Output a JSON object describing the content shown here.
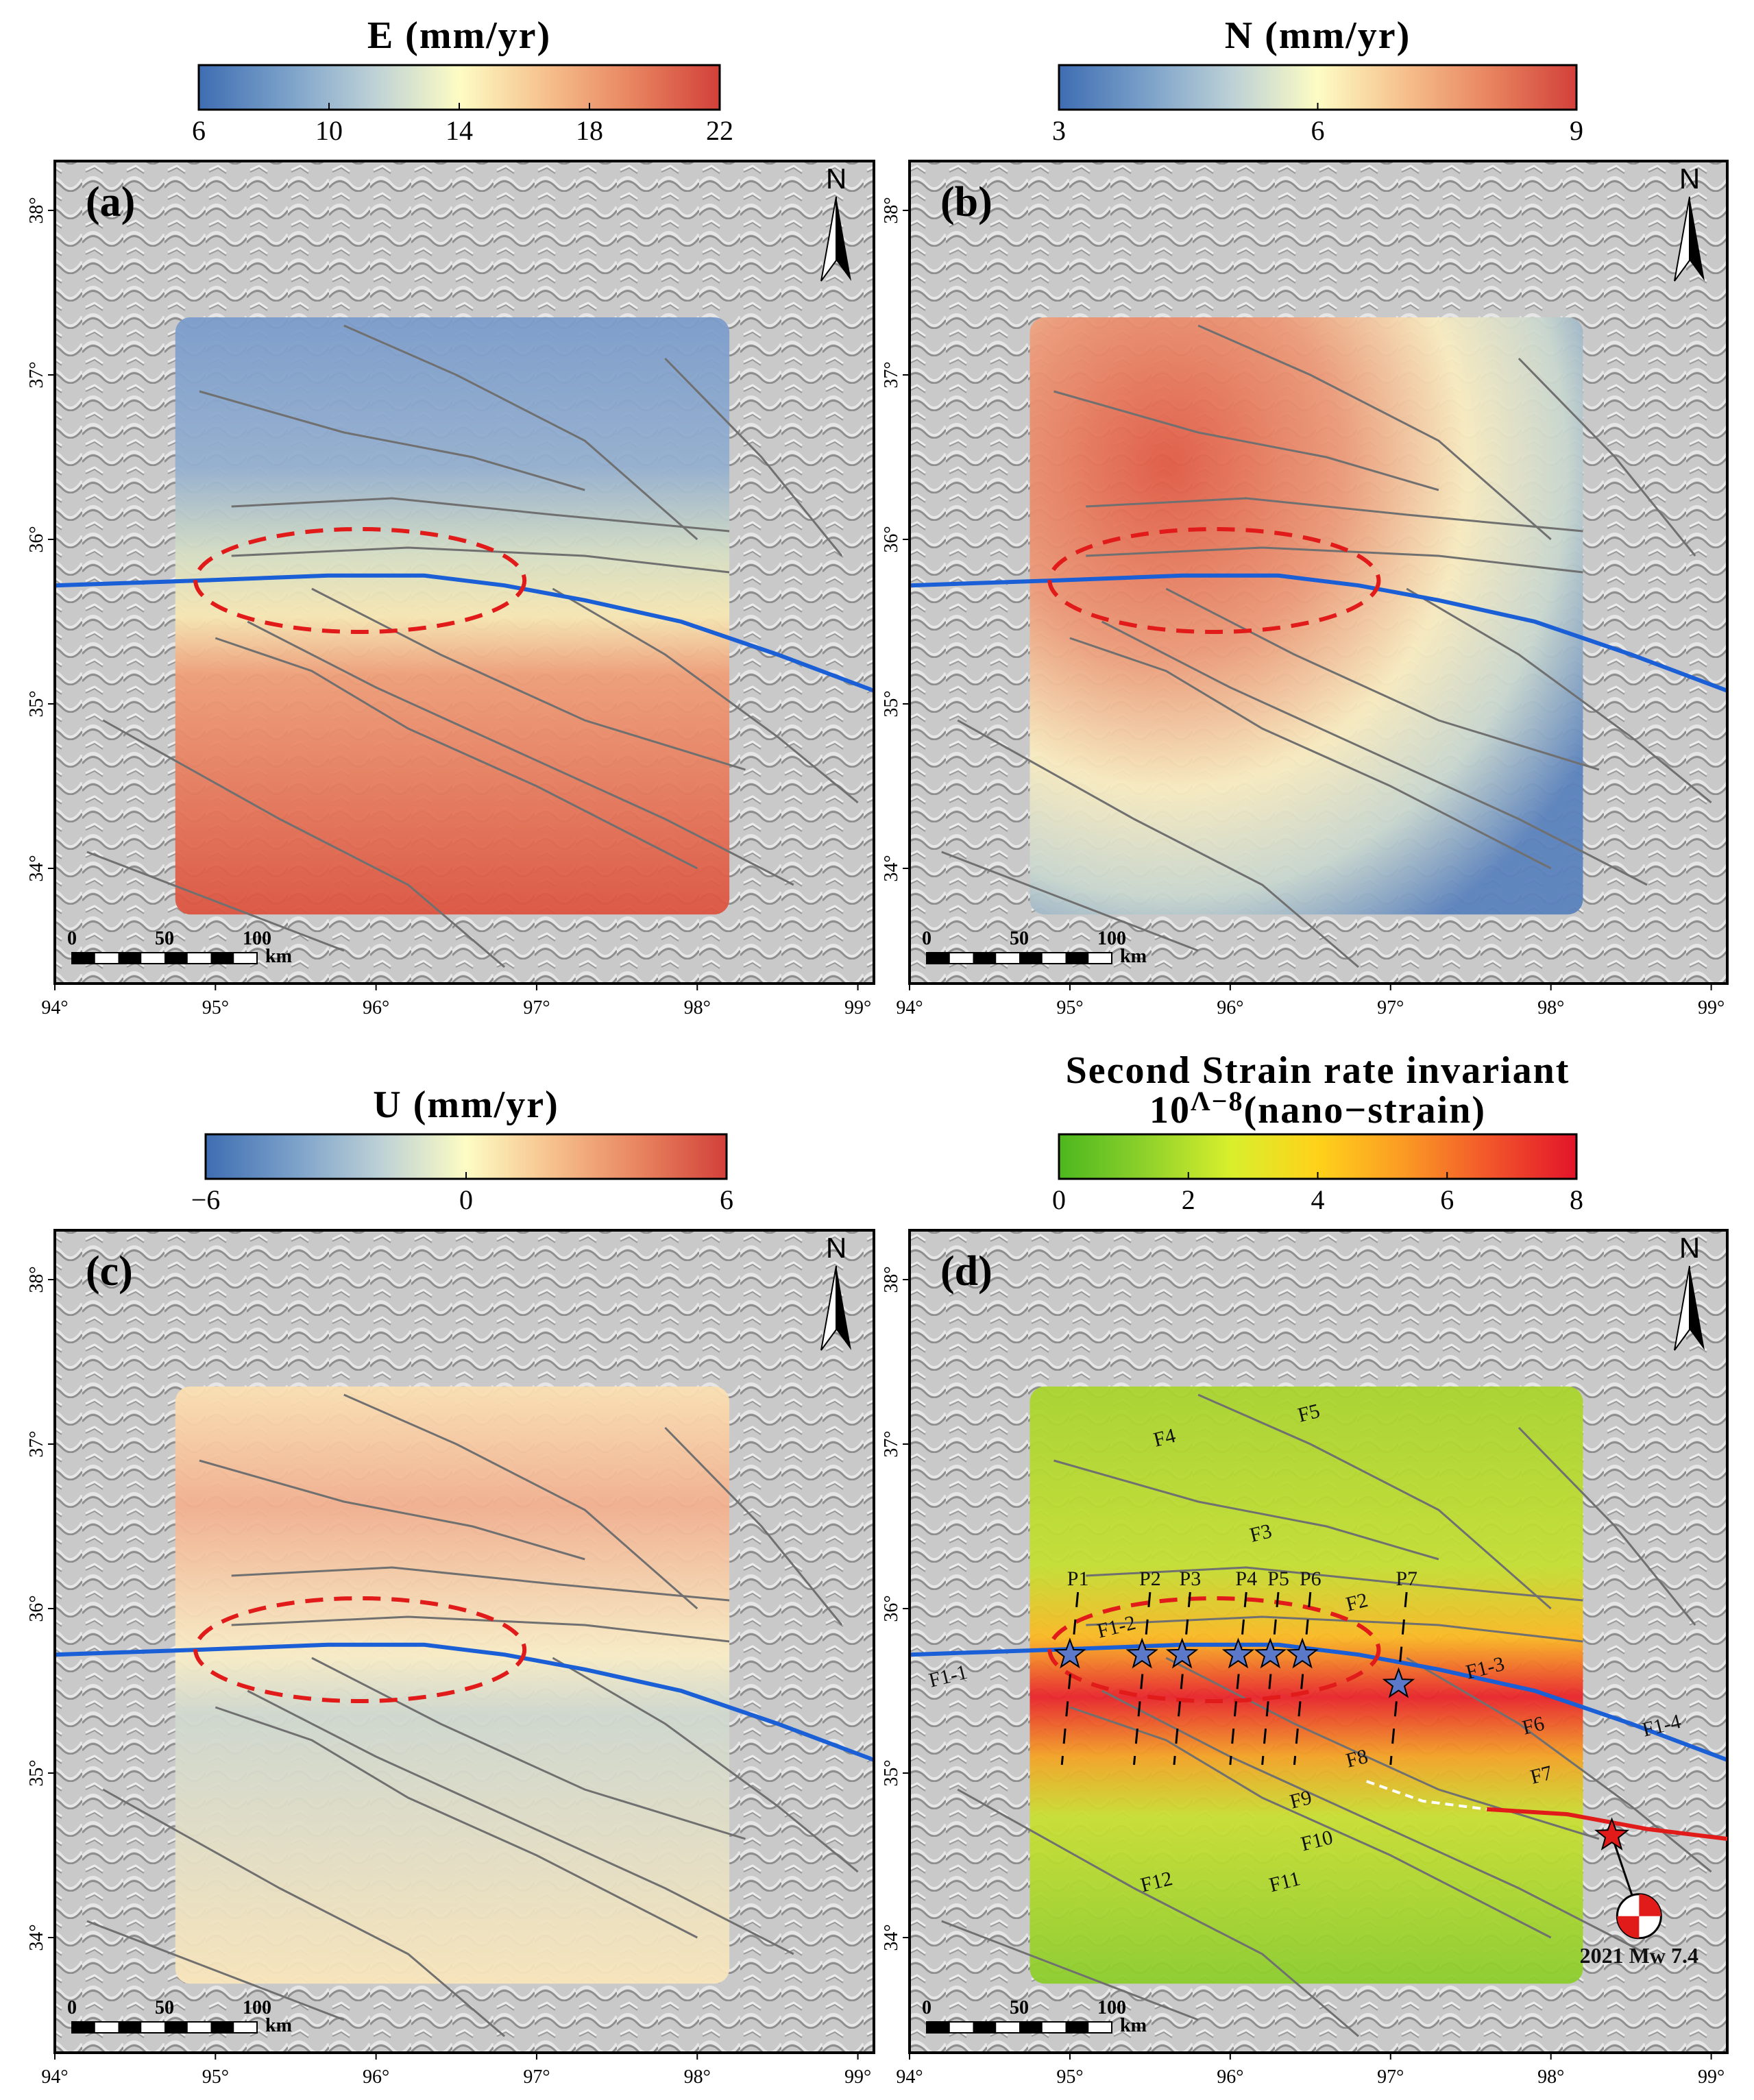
{
  "colors": {
    "diverging": [
      "#3e6db2",
      "#7aa0c9",
      "#bcd0d6",
      "#fdfcc4",
      "#f6c08c",
      "#e8845f",
      "#d2403a"
    ],
    "strain": [
      "#4cb71f",
      "#8fd12b",
      "#d9ef2c",
      "#ffd21a",
      "#fb9a24",
      "#f2552b",
      "#e2142a"
    ],
    "fault": "#707070",
    "main_fault": "#1a5fd6",
    "ellipse": "#e11a1a",
    "rupture": "#e11a1a"
  },
  "panels": [
    {
      "id": "a",
      "label": "(a)",
      "colorbar": {
        "title": "E (mm/yr)",
        "ticks": [
          "6",
          "10",
          "14",
          "18",
          "22"
        ],
        "palette": "diverging"
      }
    },
    {
      "id": "b",
      "label": "(b)",
      "colorbar": {
        "title": "N (mm/yr)",
        "ticks": [
          "3",
          "6",
          "9"
        ],
        "palette": "diverging"
      }
    },
    {
      "id": "c",
      "label": "(c)",
      "colorbar": {
        "title": "U (mm/yr)",
        "ticks": [
          "−6",
          "0",
          "6"
        ],
        "palette": "diverging"
      }
    },
    {
      "id": "d",
      "label": "(d)",
      "colorbar": {
        "title_line1": "Second Strain rate invariant",
        "title_line2_base": "10",
        "title_line2_exp": "Λ−8",
        "title_line2_rest": "(nano−strain)",
        "ticks": [
          "0",
          "2",
          "4",
          "6",
          "8"
        ],
        "palette": "strain"
      },
      "profiles": [
        "P1",
        "P2",
        "P3",
        "P4",
        "P5",
        "P6",
        "P7"
      ],
      "faults": [
        "F1-1",
        "F1-2",
        "F1-3",
        "F1-4",
        "F2",
        "F3",
        "F4",
        "F5",
        "F6",
        "F7",
        "F8",
        "F9",
        "F10",
        "F11",
        "F12"
      ],
      "earthquake_label": "2021 Mw 7.4"
    }
  ],
  "axes": {
    "x_ticks": [
      "94°",
      "95°",
      "96°",
      "97°",
      "98°",
      "99°"
    ],
    "y_ticks": [
      "38°",
      "37°",
      "36°",
      "35°",
      "34°"
    ]
  },
  "north": "N",
  "scalebar": {
    "labels": [
      "0",
      "50",
      "100"
    ],
    "unit": "km"
  }
}
